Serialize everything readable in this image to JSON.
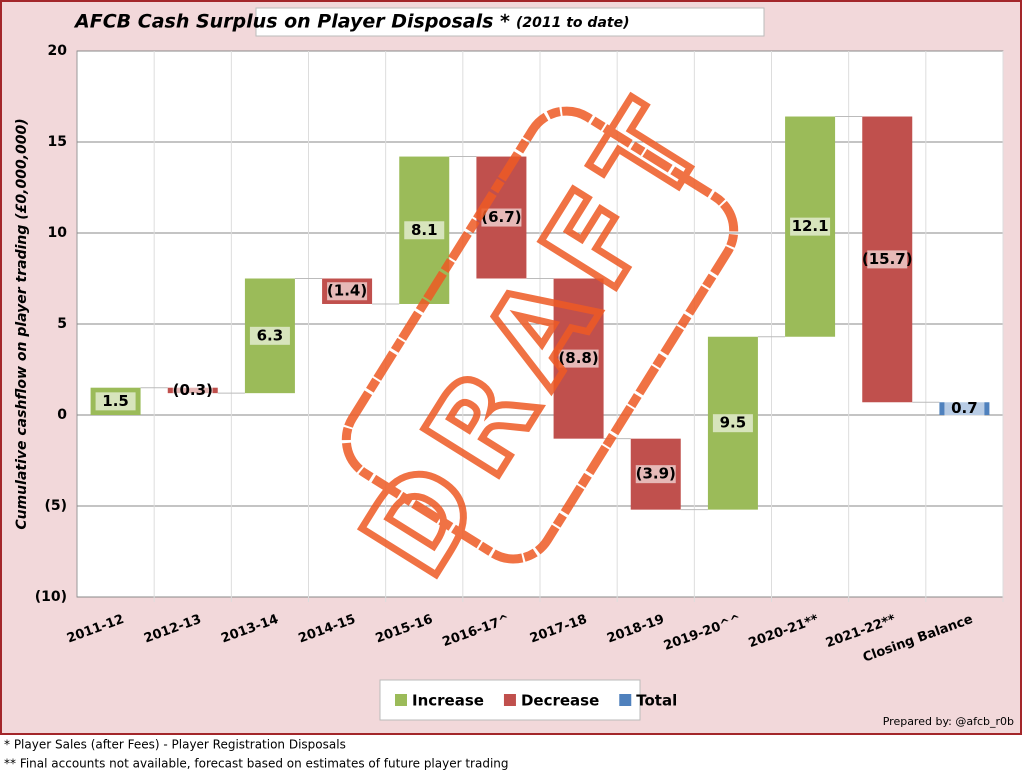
{
  "chart_data": {
    "type": "waterfall",
    "title": "AFCB Cash Surplus on Player Disposals *",
    "subtitle": "(2011 to date)",
    "y_label": "Cumulative cashflow on player trading (£0,000,000)",
    "categories": [
      "2011-12",
      "2012-13",
      "2013-14",
      "2014-15",
      "2015-16",
      "2016-17^",
      "2017-18",
      "2018-19",
      "2019-20^^",
      "2020-21**",
      "2021-22**",
      "Closing Balance"
    ],
    "values": [
      1.5,
      -0.3,
      6.3,
      -1.4,
      8.1,
      -6.7,
      -8.8,
      -3.9,
      9.5,
      12.1,
      -15.7,
      0.7
    ],
    "value_labels": [
      "1.5",
      "(0.3)",
      "6.3",
      "(1.4)",
      "8.1",
      "(6.7)",
      "(8.8)",
      "(3.9)",
      "9.5",
      "12.1",
      "(15.7)",
      "0.7"
    ],
    "series": [
      {
        "name": "Increase",
        "color": "#9bbb59"
      },
      {
        "name": "Decrease",
        "color": "#c0504d"
      },
      {
        "name": "Total",
        "color": "#4f81bd"
      }
    ],
    "ylim": [
      -10,
      20
    ],
    "yticks": [
      {
        "value": -10,
        "label": "(10)"
      },
      {
        "value": -5,
        "label": "(5)"
      },
      0,
      5,
      10,
      15,
      20
    ],
    "grid": true,
    "legend": "bottom",
    "stamp": "DRAFT",
    "credit": "Prepared by: @afcb_r0b",
    "footnotes": [
      "* Player Sales (after Fees) - Player Registration Disposals",
      "** Final accounts not available, forecast based on estimates of future player trading"
    ]
  }
}
